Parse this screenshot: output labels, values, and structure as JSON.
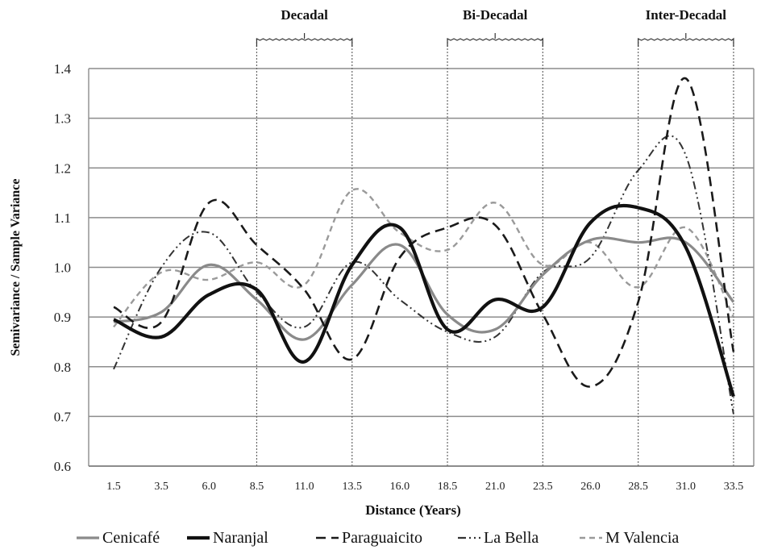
{
  "chart_data": {
    "type": "line",
    "xlabel": "Distance (Years)",
    "ylabel": "Semivariance / Sample Variance",
    "ylim": [
      0.6,
      1.4
    ],
    "yticks": [
      "0.6",
      "0.7",
      "0.8",
      "0.9",
      "1.0",
      "1.1",
      "1.2",
      "1.3",
      "1.4"
    ],
    "categories": [
      "1.5",
      "3.5",
      "6.0",
      "8.5",
      "11.0",
      "13.5",
      "16.0",
      "18.5",
      "21.0",
      "23.5",
      "26.0",
      "28.5",
      "31.0",
      "33.5"
    ],
    "grid": true,
    "legend_position": "bottom",
    "bands": [
      {
        "label": "Decadal",
        "from": "8.5",
        "to": "13.5"
      },
      {
        "label": "Bi-Decadal",
        "from": "18.5",
        "to": "23.5"
      },
      {
        "label": "Inter-Decadal",
        "from": "28.5",
        "to": "33.5"
      }
    ],
    "series": [
      {
        "name": "Cenicafé",
        "values": [
          0.89,
          0.91,
          1.005,
          0.935,
          0.855,
          0.965,
          1.045,
          0.905,
          0.875,
          0.985,
          1.055,
          1.05,
          1.05,
          0.93
        ],
        "color": "#8a8a8a",
        "dash": "solid",
        "width": 3.2
      },
      {
        "name": "Naranjal",
        "values": [
          0.895,
          0.86,
          0.945,
          0.955,
          0.81,
          1.005,
          1.08,
          0.875,
          0.935,
          0.92,
          1.09,
          1.12,
          1.04,
          0.74
        ],
        "color": "#111111",
        "dash": "solid",
        "width": 4.2
      },
      {
        "name": "Paraguaicito",
        "values": [
          0.92,
          0.89,
          1.13,
          1.045,
          0.955,
          0.815,
          1.02,
          1.08,
          1.085,
          0.905,
          0.76,
          0.93,
          1.38,
          0.83
        ],
        "color": "#1a1a1a",
        "dash": "12,7",
        "width": 2.6
      },
      {
        "name": "La Bella",
        "values": [
          0.795,
          1.0,
          1.07,
          0.95,
          0.88,
          1.01,
          0.935,
          0.87,
          0.86,
          0.99,
          1.02,
          1.195,
          1.225,
          0.705
        ],
        "color": "#333333",
        "dash": "10,4,2,4,2,4",
        "width": 2.0
      },
      {
        "name": "M Valencia",
        "values": [
          0.88,
          0.99,
          0.975,
          1.01,
          0.965,
          1.155,
          1.07,
          1.035,
          1.13,
          1.005,
          1.05,
          0.96,
          1.08,
          0.9
        ],
        "color": "#9a9a9a",
        "dash": "7,5",
        "width": 2.4
      }
    ]
  }
}
